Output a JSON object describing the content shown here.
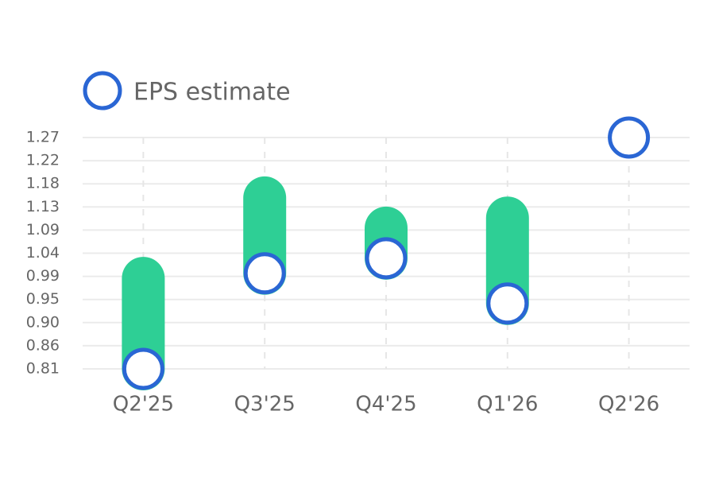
{
  "chart_data": {
    "type": "range-dot",
    "categories": [
      "Q2'25",
      "Q3'25",
      "Q4'25",
      "Q1'26",
      "Q2'26"
    ],
    "series": [
      {
        "name": "EPS estimate",
        "color": "#2a66d4",
        "values": [
          0.81,
          1.0,
          1.03,
          0.94,
          1.27
        ]
      },
      {
        "color": "#2ecf95",
        "values": [
          0.99,
          1.15,
          1.09,
          1.11,
          null
        ]
      }
    ],
    "ylim": [
      0.81,
      1.27
    ],
    "yticks": [
      {
        "value": 0.81,
        "label": "0.81"
      },
      {
        "value": 0.856,
        "label": "0.86"
      },
      {
        "value": 0.902,
        "label": "0.90"
      },
      {
        "value": 0.948,
        "label": "0.95"
      },
      {
        "value": 0.994,
        "label": "0.99"
      },
      {
        "value": 1.04,
        "label": "1.04"
      },
      {
        "value": 1.086,
        "label": "1.09"
      },
      {
        "value": 1.132,
        "label": "1.13"
      },
      {
        "value": 1.178,
        "label": "1.18"
      },
      {
        "value": 1.224,
        "label": "1.22"
      },
      {
        "value": 1.27,
        "label": "1.27"
      }
    ],
    "grid": true
  }
}
